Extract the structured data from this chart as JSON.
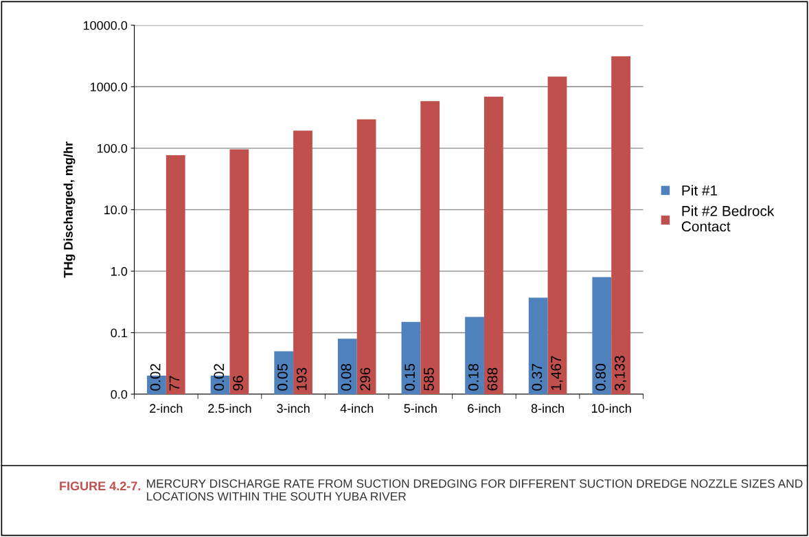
{
  "chart_data": {
    "type": "bar",
    "ylabel": "THg Discharged, mg/hr",
    "categories": [
      "2-inch",
      "2.5-inch",
      "3-inch",
      "4-inch",
      "5-inch",
      "6-inch",
      "8-inch",
      "10-inch"
    ],
    "series": [
      {
        "name": "Pit #1",
        "color": "#4f81bd",
        "values": [
          0.02,
          0.02,
          0.05,
          0.08,
          0.15,
          0.18,
          0.37,
          0.8
        ],
        "value_labels": [
          "0.02",
          "0.02",
          "0.05",
          "0.08",
          "0.15",
          "0.18",
          "0.37",
          "0.80"
        ]
      },
      {
        "name": "Pit #2 Bedrock Contact",
        "color": "#c0504d",
        "values": [
          77,
          96,
          193,
          296,
          585,
          688,
          1467,
          3133
        ],
        "value_labels": [
          "77",
          "96",
          "193",
          "296",
          "585",
          "688",
          "1,467",
          "3,133"
        ]
      }
    ],
    "log": "y",
    "ylim": [
      0.01,
      10000
    ],
    "yticks": [
      {
        "value": 0.01,
        "label": "0.0"
      },
      {
        "value": 0.1,
        "label": "0.1"
      },
      {
        "value": 1,
        "label": "1.0"
      },
      {
        "value": 10,
        "label": "10.0"
      },
      {
        "value": 100,
        "label": "100.0"
      },
      {
        "value": 1000,
        "label": "1000.0"
      },
      {
        "value": 10000,
        "label": "10000.0"
      }
    ],
    "grid": "y",
    "legend": "right",
    "annotations": [
      "FIGURE 4.2-7.",
      "MERCURY DISCHARGE RATE FROM SUCTION DREDGING FOR DIFFERENT SUCTION DREDGE NOZZLE SIZES AND LOCATIONS WITHIN THE SOUTH YUBA RIVER"
    ]
  }
}
